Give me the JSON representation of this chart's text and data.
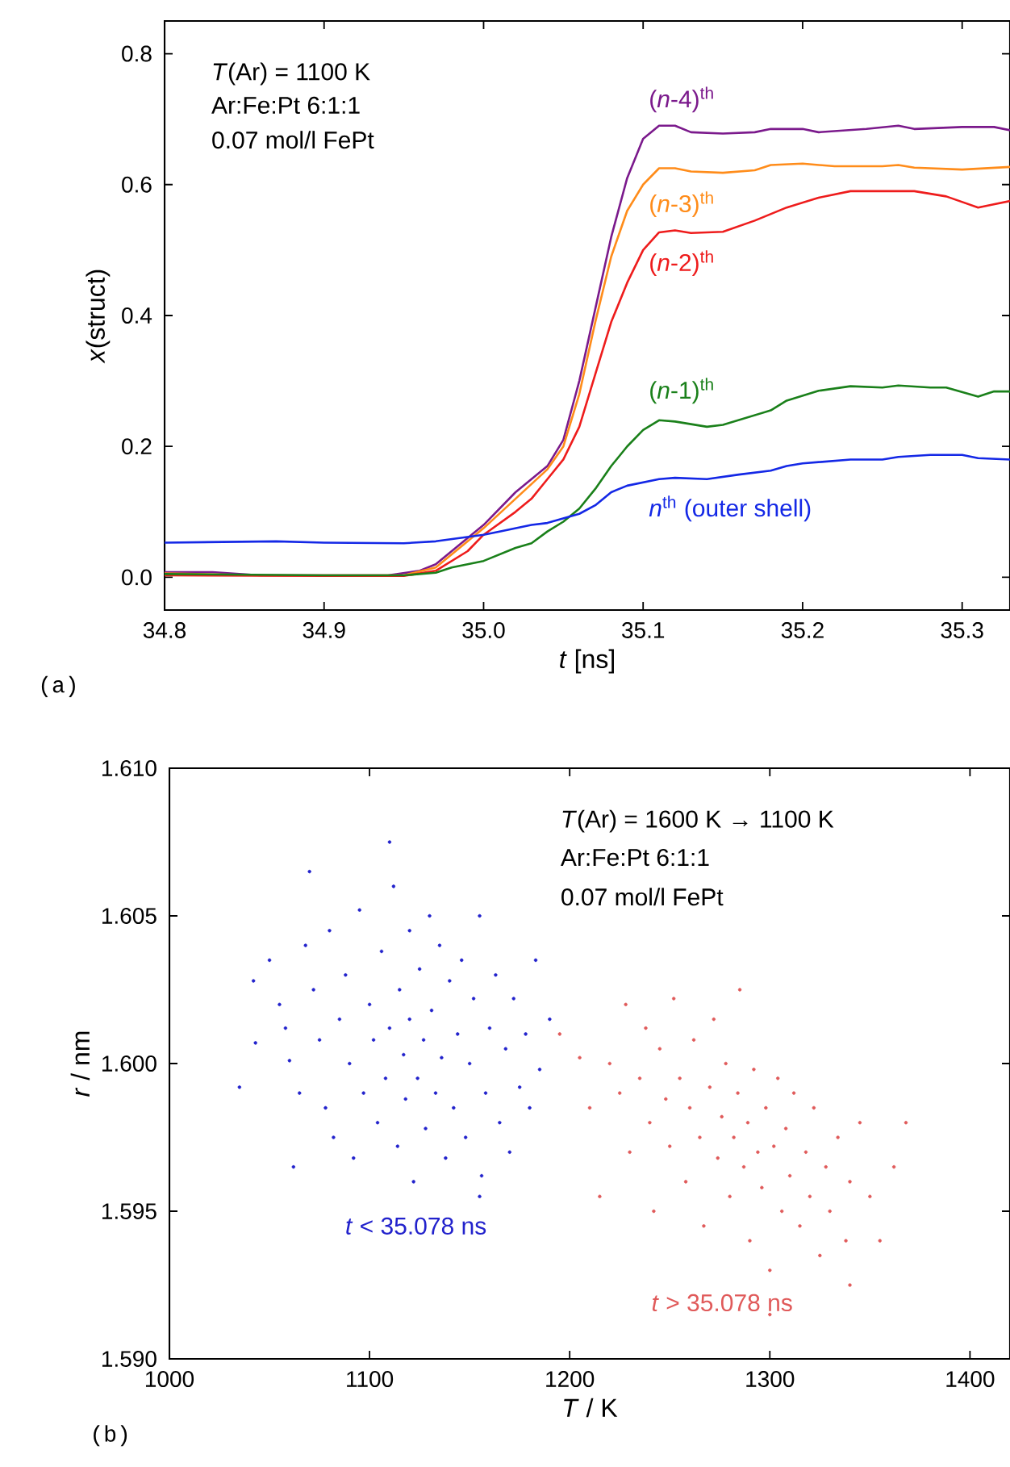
{
  "chart_data": [
    {
      "type": "line",
      "xlabel": "*t* [ns]",
      "ylabel": "*x*(struct)",
      "xlim": [
        34.8,
        35.33
      ],
      "ylim": [
        -0.05,
        0.85
      ],
      "xticks": [
        34.8,
        34.9,
        {
          "value": 35,
          "label": "35.0"
        },
        35.1,
        35.2,
        35.3
      ],
      "yticks": [
        {
          "value": 0,
          "label": "0.0"
        },
        0.2,
        0.4,
        0.6,
        0.8
      ],
      "marker": "none",
      "line_style": "solid",
      "annotations": [
        "*T*(Ar) = 1100 K",
        "Ar:Fe:Pt 6:1:1",
        "0.07 mol/l FePt",
        "(a)"
      ],
      "series": [
        {
          "name": "(*n*-4)$^{th}$",
          "color": "#7b1a8c",
          "x": [
            34.8,
            34.83,
            34.86,
            34.9,
            34.94,
            34.96,
            34.97,
            34.98,
            35.0,
            35.02,
            35.04,
            35.05,
            35.06,
            35.07,
            35.08,
            35.09,
            35.1,
            35.11,
            35.12,
            35.13,
            35.15,
            35.17,
            35.18,
            35.2,
            35.21,
            35.24,
            35.26,
            35.27,
            35.3,
            35.32,
            35.33
          ],
          "values": [
            0.008,
            0.008,
            0.003,
            0.003,
            0.003,
            0.01,
            0.02,
            0.04,
            0.08,
            0.13,
            0.17,
            0.21,
            0.3,
            0.41,
            0.52,
            0.61,
            0.67,
            0.69,
            0.69,
            0.68,
            0.678,
            0.68,
            0.685,
            0.685,
            0.68,
            0.685,
            0.69,
            0.685,
            0.688,
            0.688,
            0.683
          ]
        },
        {
          "name": "(*n*-3)$^{th}$",
          "color": "#ff8c1a",
          "x": [
            34.8,
            34.86,
            34.9,
            34.95,
            34.97,
            34.98,
            35.0,
            35.02,
            35.04,
            35.05,
            35.06,
            35.07,
            35.08,
            35.09,
            35.1,
            35.11,
            35.12,
            35.13,
            35.15,
            35.17,
            35.18,
            35.2,
            35.22,
            35.25,
            35.26,
            35.27,
            35.3,
            35.33
          ],
          "values": [
            0.006,
            0.003,
            0.003,
            0.003,
            0.015,
            0.035,
            0.075,
            0.12,
            0.165,
            0.2,
            0.28,
            0.39,
            0.49,
            0.56,
            0.6,
            0.625,
            0.625,
            0.62,
            0.618,
            0.622,
            0.63,
            0.632,
            0.628,
            0.628,
            0.63,
            0.626,
            0.623,
            0.627
          ]
        },
        {
          "name": "(*n*-2)$^{th}$",
          "color": "#ee1c1c",
          "x": [
            34.8,
            34.9,
            34.95,
            34.97,
            34.99,
            35.0,
            35.02,
            35.03,
            35.04,
            35.05,
            35.06,
            35.07,
            35.08,
            35.09,
            35.1,
            35.11,
            35.12,
            35.13,
            35.15,
            35.17,
            35.19,
            35.21,
            35.23,
            35.27,
            35.29,
            35.31,
            35.33
          ],
          "values": [
            0.003,
            0.002,
            0.002,
            0.01,
            0.04,
            0.065,
            0.1,
            0.12,
            0.15,
            0.18,
            0.23,
            0.31,
            0.39,
            0.45,
            0.5,
            0.527,
            0.53,
            0.526,
            0.528,
            0.545,
            0.565,
            0.58,
            0.59,
            0.59,
            0.582,
            0.565,
            0.575
          ]
        },
        {
          "name": "(*n*-1)$^{th}$",
          "color": "#1a801a",
          "x": [
            34.8,
            34.9,
            34.95,
            34.97,
            34.98,
            35.0,
            35.02,
            35.03,
            35.04,
            35.05,
            35.06,
            35.07,
            35.08,
            35.09,
            35.1,
            35.11,
            35.12,
            35.14,
            35.15,
            35.18,
            35.19,
            35.21,
            35.23,
            35.25,
            35.26,
            35.28,
            35.29,
            35.31,
            35.32,
            35.33
          ],
          "values": [
            0.005,
            0.003,
            0.003,
            0.007,
            0.015,
            0.025,
            0.045,
            0.052,
            0.07,
            0.085,
            0.105,
            0.135,
            0.17,
            0.2,
            0.225,
            0.24,
            0.238,
            0.23,
            0.233,
            0.255,
            0.27,
            0.285,
            0.292,
            0.29,
            0.293,
            0.29,
            0.29,
            0.276,
            0.284,
            0.284
          ]
        },
        {
          "name": "*n*$^{th}$ (outer shell)",
          "color": "#1428e6",
          "x": [
            34.8,
            34.87,
            34.9,
            34.95,
            34.97,
            35.0,
            35.01,
            35.03,
            35.04,
            35.06,
            35.07,
            35.08,
            35.09,
            35.11,
            35.12,
            35.14,
            35.16,
            35.18,
            35.19,
            35.2,
            35.23,
            35.25,
            35.26,
            35.28,
            35.3,
            35.31,
            35.33
          ],
          "values": [
            0.053,
            0.055,
            0.053,
            0.052,
            0.055,
            0.065,
            0.07,
            0.08,
            0.083,
            0.097,
            0.11,
            0.13,
            0.14,
            0.15,
            0.152,
            0.15,
            0.157,
            0.163,
            0.17,
            0.174,
            0.18,
            0.18,
            0.184,
            0.187,
            0.187,
            0.182,
            0.18
          ]
        }
      ]
    },
    {
      "type": "scatter",
      "xlabel": "*T* / K",
      "ylabel": "*r* / nm",
      "xlim": [
        1000,
        1420
      ],
      "ylim": [
        1.59,
        1.61
      ],
      "xticks": [
        1000,
        1100,
        1200,
        1300,
        1400
      ],
      "yticks": [
        {
          "value": 1.59,
          "label": "1.590"
        },
        1.595,
        {
          "value": 1.6,
          "label": "1.600"
        },
        1.605,
        {
          "value": 1.61,
          "label": "1.610"
        }
      ],
      "marker": "circle",
      "annotations": [
        "*T*(Ar) = 1600 K → 1100 K",
        "Ar:Fe:Pt 6:1:1",
        "0.07 mol/l FePt",
        "(b)"
      ],
      "series": [
        {
          "name": "*t* < 35.078 ns",
          "color": "#2222cc",
          "x": [
            1035,
            1043,
            1042,
            1050,
            1055,
            1058,
            1060,
            1062,
            1065,
            1068,
            1070,
            1072,
            1075,
            1078,
            1080,
            1082,
            1085,
            1088,
            1090,
            1092,
            1095,
            1097,
            1100,
            1102,
            1104,
            1106,
            1108,
            1110,
            1110,
            1112,
            1114,
            1115,
            1117,
            1118,
            1120,
            1120,
            1122,
            1124,
            1125,
            1127,
            1128,
            1130,
            1131,
            1133,
            1135,
            1136,
            1138,
            1140,
            1142,
            1144,
            1146,
            1148,
            1150,
            1152,
            1155,
            1156,
            1158,
            1160,
            1163,
            1165,
            1168,
            1170,
            1172,
            1175,
            1178,
            1180,
            1183,
            1185,
            1190,
            1155
          ],
          "values": [
            1.5992,
            1.6007,
            1.6028,
            1.6035,
            1.602,
            1.6012,
            1.6001,
            1.5965,
            1.599,
            1.604,
            1.6065,
            1.6025,
            1.6008,
            1.5985,
            1.6045,
            1.5975,
            1.6015,
            1.603,
            1.6,
            1.5968,
            1.6052,
            1.599,
            1.602,
            1.6008,
            1.598,
            1.6038,
            1.5995,
            1.6075,
            1.6012,
            1.606,
            1.5972,
            1.6025,
            1.6003,
            1.5988,
            1.6045,
            1.6015,
            1.596,
            1.5995,
            1.6032,
            1.6008,
            1.5978,
            1.605,
            1.6018,
            1.599,
            1.604,
            1.6002,
            1.5968,
            1.6028,
            1.5985,
            1.601,
            1.6035,
            1.5975,
            1.6,
            1.6022,
            1.605,
            1.5962,
            1.599,
            1.6012,
            1.603,
            1.598,
            1.6005,
            1.597,
            1.6022,
            1.5992,
            1.601,
            1.5985,
            1.6035,
            1.5998,
            1.6015,
            1.5955
          ]
        },
        {
          "name": "*t* > 35.078 ns",
          "color": "#e05a5a",
          "x": [
            1195,
            1205,
            1210,
            1215,
            1220,
            1225,
            1228,
            1230,
            1235,
            1238,
            1240,
            1242,
            1245,
            1248,
            1250,
            1252,
            1255,
            1258,
            1260,
            1262,
            1265,
            1267,
            1270,
            1272,
            1274,
            1276,
            1278,
            1280,
            1282,
            1284,
            1285,
            1287,
            1289,
            1290,
            1292,
            1294,
            1296,
            1298,
            1300,
            1302,
            1304,
            1306,
            1308,
            1310,
            1312,
            1315,
            1318,
            1320,
            1322,
            1325,
            1328,
            1330,
            1334,
            1338,
            1340,
            1345,
            1350,
            1355,
            1362,
            1368,
            1340,
            1300
          ],
          "values": [
            1.601,
            1.6002,
            1.5985,
            1.5955,
            1.6,
            1.599,
            1.602,
            1.597,
            1.5995,
            1.6012,
            1.598,
            1.595,
            1.6005,
            1.5988,
            1.5972,
            1.6022,
            1.5995,
            1.596,
            1.5985,
            1.6008,
            1.5975,
            1.5945,
            1.5992,
            1.6015,
            1.5968,
            1.5982,
            1.6,
            1.5955,
            1.5975,
            1.599,
            1.6025,
            1.5965,
            1.598,
            1.594,
            1.5998,
            1.597,
            1.5958,
            1.5985,
            1.593,
            1.5972,
            1.5995,
            1.595,
            1.5978,
            1.5962,
            1.599,
            1.5945,
            1.597,
            1.5955,
            1.5985,
            1.5935,
            1.5965,
            1.595,
            1.5975,
            1.594,
            1.596,
            1.598,
            1.5955,
            1.594,
            1.5965,
            1.598,
            1.5925,
            1.5915
          ]
        }
      ]
    }
  ]
}
